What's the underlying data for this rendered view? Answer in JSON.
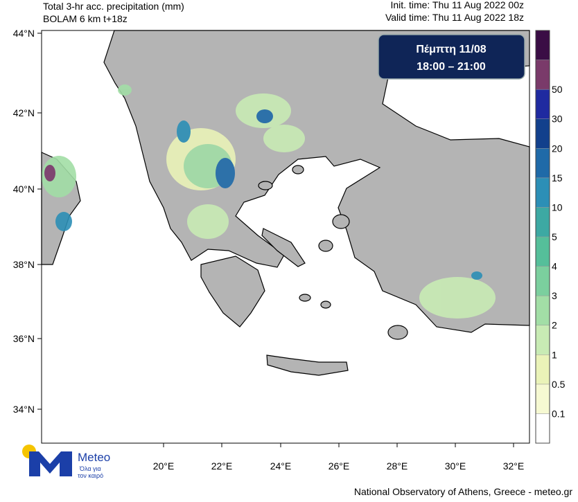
{
  "header": {
    "title": "Total 3-hr acc. precipitation (mm)",
    "subtitle": "BOLAM 6 km t+18z",
    "init_time": "Init. time: Thu 11 Aug 2022 00z",
    "valid_time": "Valid time: Thu 11 Aug 2022 18z"
  },
  "badge": {
    "day": "Πέμπτη 11/08",
    "hours": "18:00 – 21:00"
  },
  "map": {
    "lat_labels": [
      "44°N",
      "42°N",
      "40°N",
      "38°N",
      "36°N",
      "34°N"
    ],
    "lon_labels": [
      "20°E",
      "22°E",
      "24°E",
      "26°E",
      "28°E",
      "30°E",
      "32°E"
    ]
  },
  "colorbar": {
    "levels": [
      "0.1",
      "0.5",
      "1",
      "2",
      "3",
      "4",
      "5",
      "10",
      "15",
      "20",
      "30",
      "50"
    ],
    "colors": [
      "#ffffff",
      "#f6f9d2",
      "#eaf3b8",
      "#c8ebb4",
      "#a2dea6",
      "#7bcf9e",
      "#55bf9a",
      "#3da9a3",
      "#2c8fb6",
      "#1f6aa8",
      "#12408c",
      "#1f2aa0",
      "#7a3a6a",
      "#3a0d45"
    ]
  },
  "logo": {
    "name": "Meteo",
    "tagline_1": "Όλα για",
    "tagline_2": "τον καιρό"
  },
  "footer": "National Observatory of Athens, Greece - meteo.gr"
}
